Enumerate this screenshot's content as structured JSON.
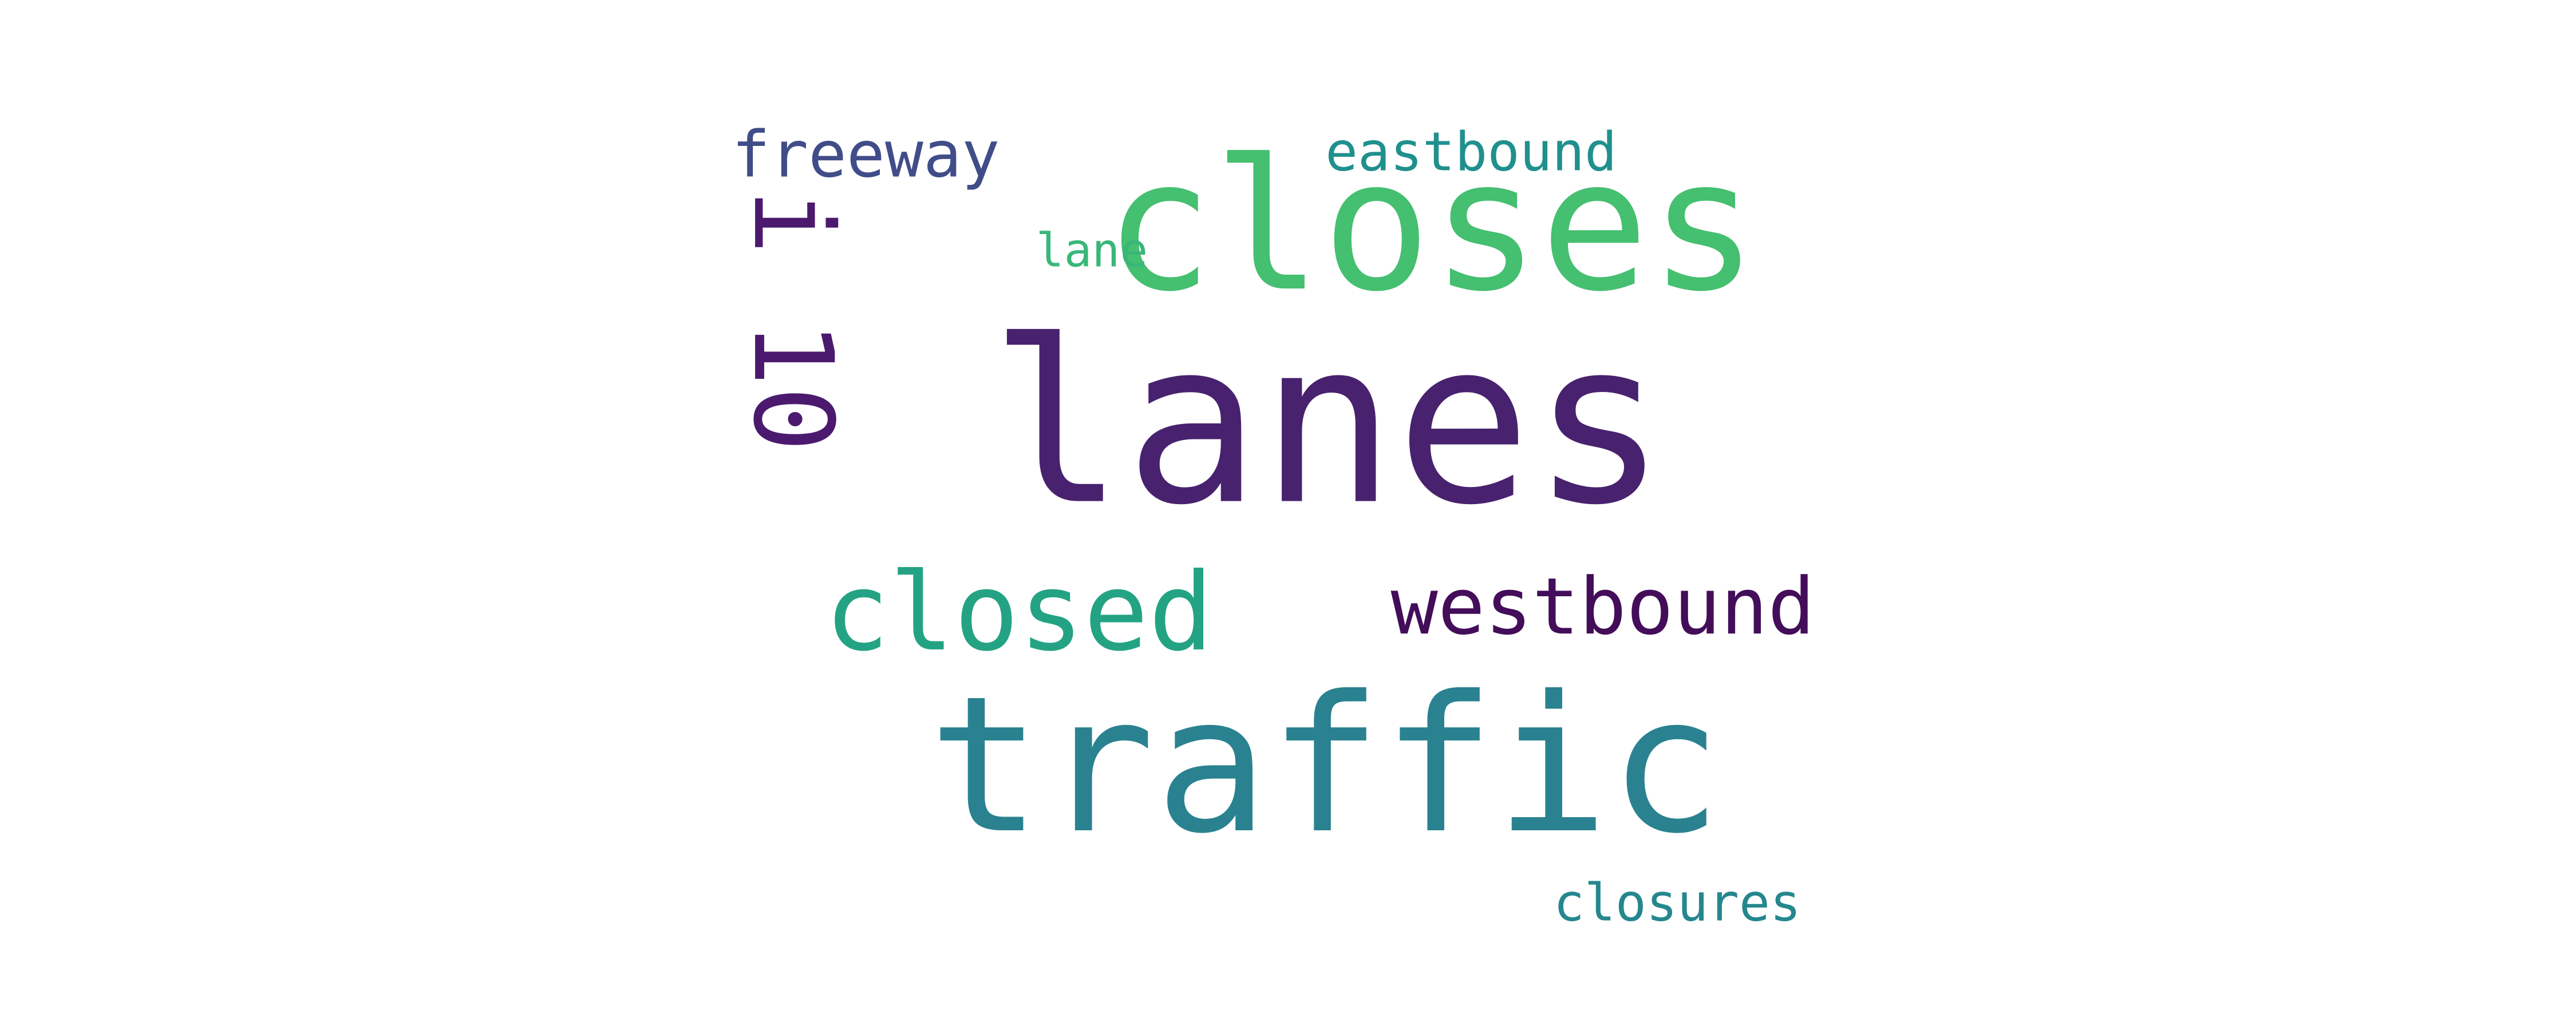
{
  "words": [
    {
      "key": "lanes",
      "text": "lanes",
      "color": "#48226e"
    },
    {
      "key": "traffic",
      "text": "traffic",
      "color": "#2a8290"
    },
    {
      "key": "closes",
      "text": "closes",
      "color": "#45bf70"
    },
    {
      "key": "closed",
      "text": "closed",
      "color": "#24a384"
    },
    {
      "key": "westbound",
      "text": "westbound",
      "color": "#430d59"
    },
    {
      "key": "i10",
      "text": "i 10",
      "color": "#4b1a6e"
    },
    {
      "key": "eastbound",
      "text": "eastbound",
      "color": "#20908d"
    },
    {
      "key": "freeway",
      "text": "freeway",
      "color": "#404d88"
    },
    {
      "key": "lane",
      "text": "lane",
      "color": "#39b77a"
    },
    {
      "key": "closures",
      "text": "closures",
      "color": "#25878e"
    }
  ]
}
